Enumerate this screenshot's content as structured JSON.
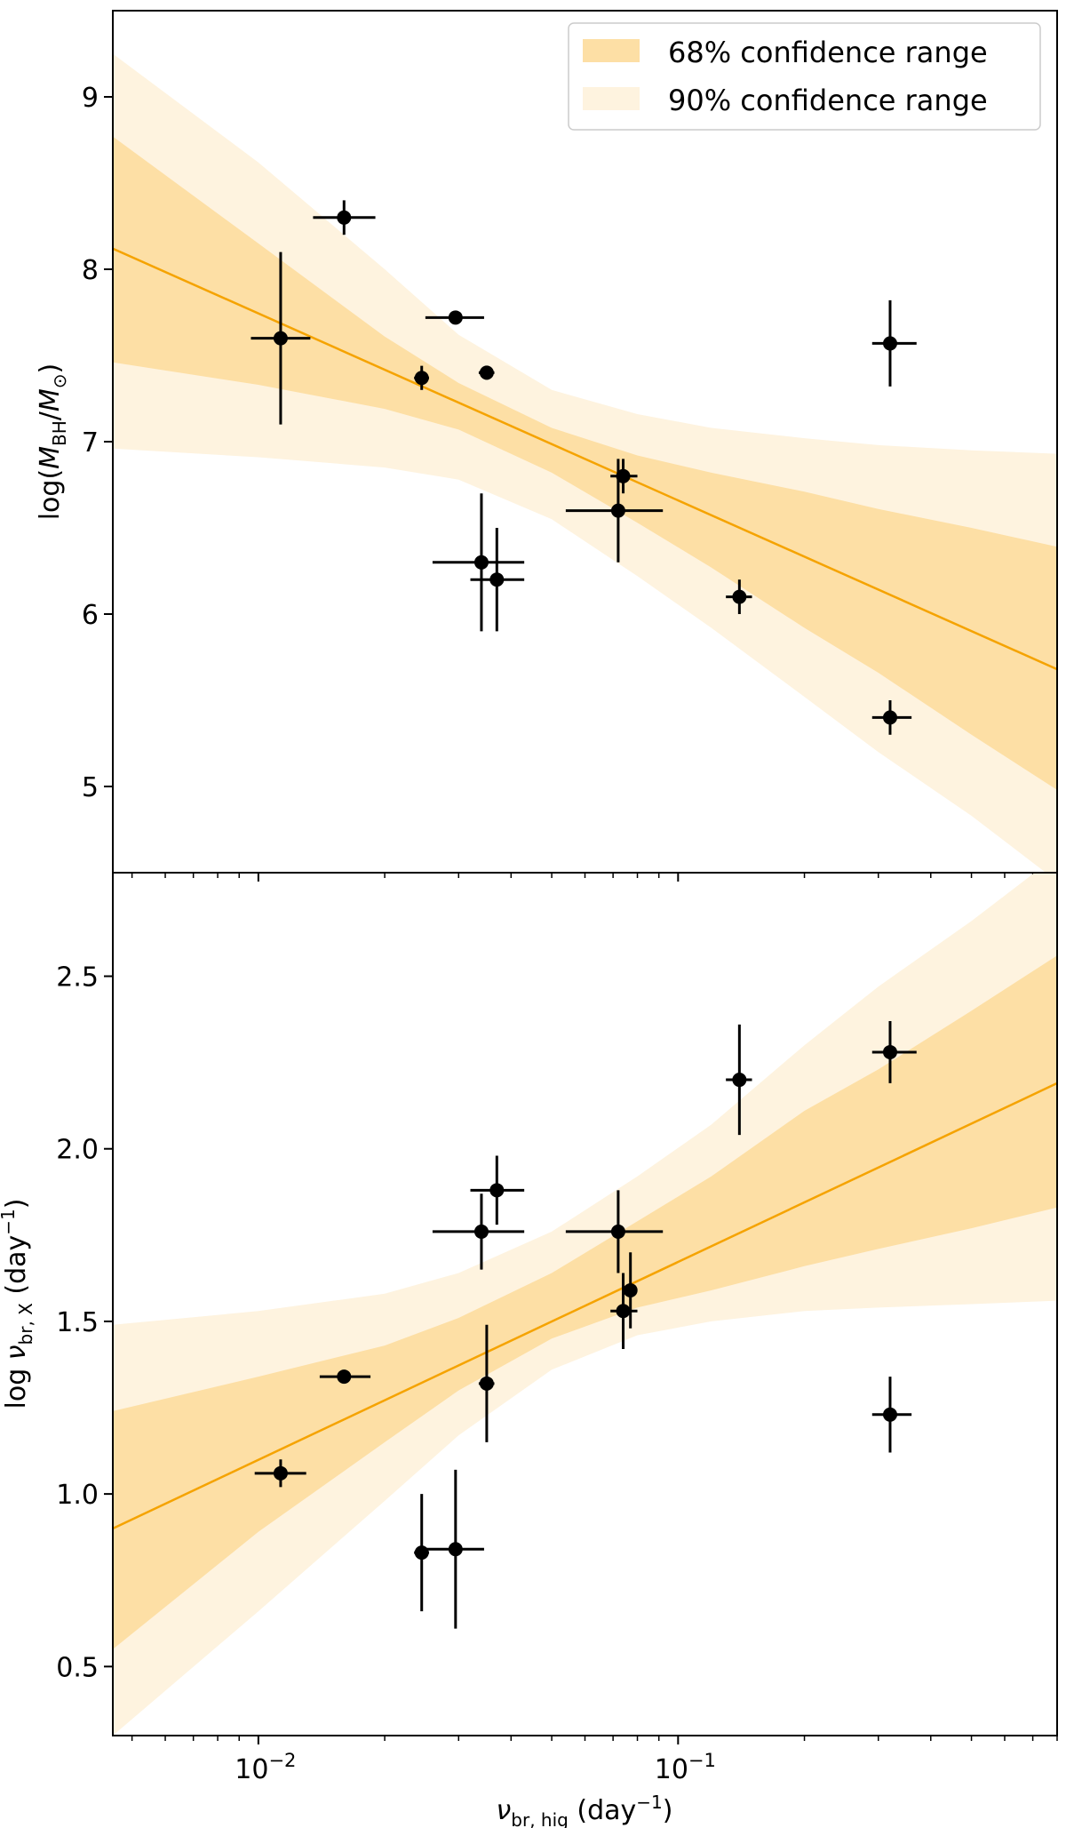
{
  "colors": {
    "fit_line": "#f5a300",
    "band_68": "#fddfa5",
    "band_90": "#fef3df",
    "points": "#000000"
  },
  "legend": {
    "items": [
      {
        "label": "68% confidence range",
        "color": "#fddfa5"
      },
      {
        "label": "90% confidence range",
        "color": "#fef3df"
      }
    ],
    "placement": "top-right"
  },
  "x_axis": {
    "scale": "log",
    "range": [
      0.0045,
      0.8
    ],
    "major_ticks": [
      {
        "value": 0.01,
        "base": "10",
        "exp": "−2"
      },
      {
        "value": 0.1,
        "base": "10",
        "exp": "−1"
      }
    ],
    "minor_ticks": [
      0.005,
      0.006,
      0.007,
      0.008,
      0.009,
      0.02,
      0.03,
      0.04,
      0.05,
      0.06,
      0.07,
      0.08,
      0.09,
      0.2,
      0.3,
      0.4,
      0.5,
      0.6,
      0.7,
      0.8
    ],
    "label": {
      "main": "ν",
      "sub": "br, hig",
      "units": " (day",
      "exp": "−1",
      "close": ")"
    }
  },
  "chart_data": [
    {
      "type": "scatter",
      "ylabel": {
        "prefix": "log(",
        "M1": "M",
        "sub1": "BH",
        "slash": "/",
        "M2": "M",
        "sub2": "⊙",
        "suffix": ")"
      },
      "ylim": [
        4.5,
        9.5
      ],
      "yticks": [
        5,
        6,
        7,
        8,
        9
      ],
      "fit": {
        "x": [
          0.0045,
          0.8
        ],
        "y": [
          8.12,
          5.68
        ]
      },
      "band_68": {
        "x": [
          0.0045,
          0.01,
          0.02,
          0.03,
          0.05,
          0.08,
          0.12,
          0.2,
          0.3,
          0.5,
          0.8
        ],
        "lower": [
          7.46,
          7.33,
          7.19,
          7.07,
          6.82,
          6.53,
          6.27,
          5.92,
          5.66,
          5.3,
          4.98
        ],
        "upper": [
          8.77,
          8.15,
          7.61,
          7.34,
          7.08,
          6.92,
          6.82,
          6.71,
          6.61,
          6.5,
          6.39
        ]
      },
      "band_90": {
        "x": [
          0.0045,
          0.01,
          0.02,
          0.03,
          0.05,
          0.08,
          0.12,
          0.2,
          0.3,
          0.5,
          0.8
        ],
        "lower": [
          6.96,
          6.91,
          6.85,
          6.78,
          6.55,
          6.22,
          5.92,
          5.52,
          5.2,
          4.83,
          4.45
        ],
        "upper": [
          9.25,
          8.62,
          8.0,
          7.62,
          7.3,
          7.16,
          7.08,
          7.02,
          6.98,
          6.95,
          6.93
        ]
      },
      "points": [
        {
          "x": 0.0113,
          "y": 7.6,
          "xerr": [
            0.0017,
            0.002
          ],
          "yerr": [
            0.5,
            0.5
          ]
        },
        {
          "x": 0.016,
          "y": 8.3,
          "xerr": [
            0.0025,
            0.003
          ],
          "yerr": [
            0.1,
            0.1
          ]
        },
        {
          "x": 0.0245,
          "y": 7.37,
          "xerr": [
            0.001,
            0.001
          ],
          "yerr": [
            0.07,
            0.07
          ]
        },
        {
          "x": 0.0295,
          "y": 7.72,
          "xerr": [
            0.0045,
            0.005
          ],
          "yerr": [
            0.02,
            0.02
          ]
        },
        {
          "x": 0.035,
          "y": 7.4,
          "xerr": [
            0.0015,
            0.0015
          ],
          "yerr": [
            0.04,
            0.04
          ]
        },
        {
          "x": 0.034,
          "y": 6.3,
          "xerr": [
            0.008,
            0.009
          ],
          "yerr": [
            0.4,
            0.4
          ]
        },
        {
          "x": 0.037,
          "y": 6.2,
          "xerr": [
            0.005,
            0.006
          ],
          "yerr": [
            0.3,
            0.3
          ]
        },
        {
          "x": 0.072,
          "y": 6.6,
          "xerr": [
            0.018,
            0.02
          ],
          "yerr": [
            0.3,
            0.3
          ]
        },
        {
          "x": 0.074,
          "y": 6.8,
          "xerr": [
            0.005,
            0.006
          ],
          "yerr": [
            0.1,
            0.1
          ]
        },
        {
          "x": 0.14,
          "y": 6.1,
          "xerr": [
            0.01,
            0.01
          ],
          "yerr": [
            0.1,
            0.1
          ]
        },
        {
          "x": 0.32,
          "y": 7.57,
          "xerr": [
            0.03,
            0.05
          ],
          "yerr": [
            0.25,
            0.25
          ]
        },
        {
          "x": 0.32,
          "y": 5.4,
          "xerr": [
            0.03,
            0.04
          ],
          "yerr": [
            0.1,
            0.1
          ]
        }
      ]
    },
    {
      "type": "scatter",
      "ylabel": {
        "prefix": "log ",
        "nu": "ν",
        "sub": "br, X",
        "units": " (day",
        "exp": "−1",
        "close": ")"
      },
      "ylim": [
        0.3,
        2.8
      ],
      "yticks": [
        0.5,
        1.0,
        1.5,
        2.0,
        2.5
      ],
      "ytick_labels": [
        "0.5",
        "1.0",
        "1.5",
        "2.0",
        "2.5"
      ],
      "fit": {
        "x": [
          0.0045,
          0.8
        ],
        "y": [
          0.9,
          2.19
        ]
      },
      "band_68": {
        "x": [
          0.0045,
          0.01,
          0.02,
          0.03,
          0.05,
          0.08,
          0.12,
          0.2,
          0.3,
          0.5,
          0.8
        ],
        "lower": [
          0.55,
          0.89,
          1.15,
          1.3,
          1.45,
          1.54,
          1.59,
          1.66,
          1.71,
          1.77,
          1.83
        ],
        "upper": [
          1.24,
          1.34,
          1.43,
          1.51,
          1.64,
          1.79,
          1.92,
          2.11,
          2.23,
          2.4,
          2.56
        ]
      },
      "band_90": {
        "x": [
          0.0045,
          0.01,
          0.02,
          0.03,
          0.05,
          0.08,
          0.12,
          0.2,
          0.3,
          0.5,
          0.8
        ],
        "lower": [
          0.3,
          0.66,
          0.98,
          1.17,
          1.36,
          1.46,
          1.5,
          1.53,
          1.54,
          1.55,
          1.56
        ],
        "upper": [
          1.49,
          1.53,
          1.58,
          1.64,
          1.76,
          1.92,
          2.07,
          2.3,
          2.47,
          2.66,
          2.85
        ]
      },
      "points": [
        {
          "x": 0.0113,
          "y": 1.06,
          "xerr": [
            0.0015,
            0.0017
          ],
          "yerr": [
            0.04,
            0.04
          ]
        },
        {
          "x": 0.016,
          "y": 1.34,
          "xerr": [
            0.002,
            0.0025
          ],
          "yerr": [
            0.01,
            0.01
          ]
        },
        {
          "x": 0.0245,
          "y": 0.83,
          "xerr": [
            0.001,
            0.001
          ],
          "yerr": [
            0.17,
            0.17
          ]
        },
        {
          "x": 0.0295,
          "y": 0.84,
          "xerr": [
            0.0045,
            0.005
          ],
          "yerr": [
            0.23,
            0.23
          ]
        },
        {
          "x": 0.034,
          "y": 1.76,
          "xerr": [
            0.008,
            0.009
          ],
          "yerr": [
            0.11,
            0.11
          ]
        },
        {
          "x": 0.035,
          "y": 1.32,
          "xerr": [
            0.0015,
            0.0015
          ],
          "yerr": [
            0.17,
            0.17
          ]
        },
        {
          "x": 0.037,
          "y": 1.88,
          "xerr": [
            0.005,
            0.006
          ],
          "yerr": [
            0.1,
            0.1
          ]
        },
        {
          "x": 0.072,
          "y": 1.76,
          "xerr": [
            0.018,
            0.02
          ],
          "yerr": [
            0.12,
            0.12
          ]
        },
        {
          "x": 0.074,
          "y": 1.53,
          "xerr": [
            0.005,
            0.006
          ],
          "yerr": [
            0.11,
            0.11
          ]
        },
        {
          "x": 0.077,
          "y": 1.59,
          "xerr": [
            0.002,
            0.002
          ],
          "yerr": [
            0.11,
            0.11
          ]
        },
        {
          "x": 0.14,
          "y": 2.2,
          "xerr": [
            0.01,
            0.01
          ],
          "yerr": [
            0.16,
            0.16
          ]
        },
        {
          "x": 0.32,
          "y": 2.28,
          "xerr": [
            0.03,
            0.05
          ],
          "yerr": [
            0.09,
            0.09
          ]
        },
        {
          "x": 0.32,
          "y": 1.23,
          "xerr": [
            0.03,
            0.04
          ],
          "yerr": [
            0.11,
            0.11
          ]
        }
      ]
    }
  ]
}
